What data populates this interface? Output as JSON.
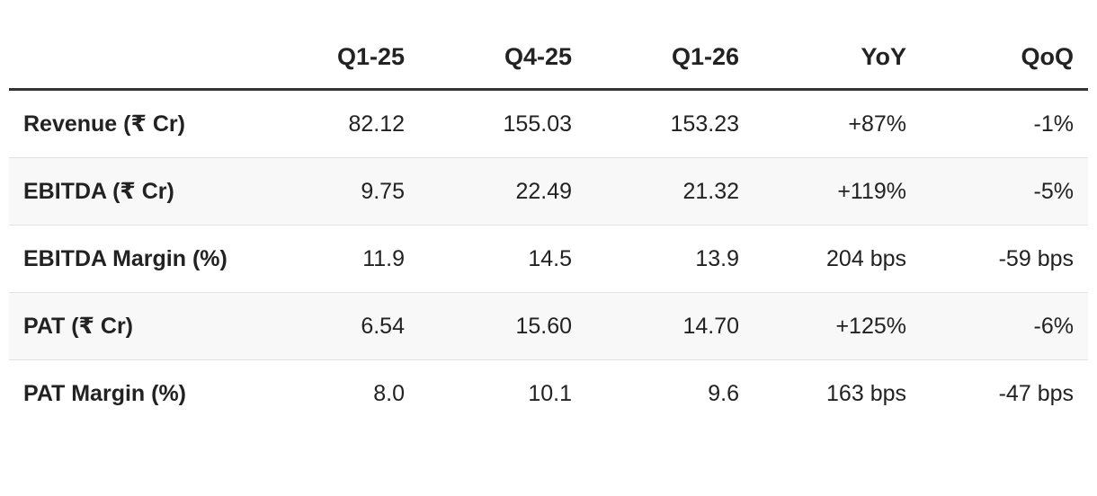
{
  "table": {
    "header": [
      "Q1-25",
      "Q4-25",
      "Q1-26",
      "YoY",
      "QoQ"
    ],
    "rows": [
      [
        "Revenue (₹ Cr)",
        "82.12",
        "155.03",
        "153.23",
        "+87%",
        "-1%"
      ],
      [
        "EBITDA (₹ Cr)",
        "9.75",
        "22.49",
        "21.32",
        "+119%",
        "-5%"
      ],
      [
        "EBITDA Margin (%)",
        "11.9",
        "14.5",
        "13.9",
        "204 bps",
        "-59 bps"
      ],
      [
        "PAT (₹ Cr)",
        "6.54",
        "15.60",
        "14.70",
        "+125%",
        "-6%"
      ],
      [
        "PAT Margin (%)",
        "8.0",
        "10.1",
        "9.6",
        "163 bps",
        "-47 bps"
      ]
    ]
  }
}
